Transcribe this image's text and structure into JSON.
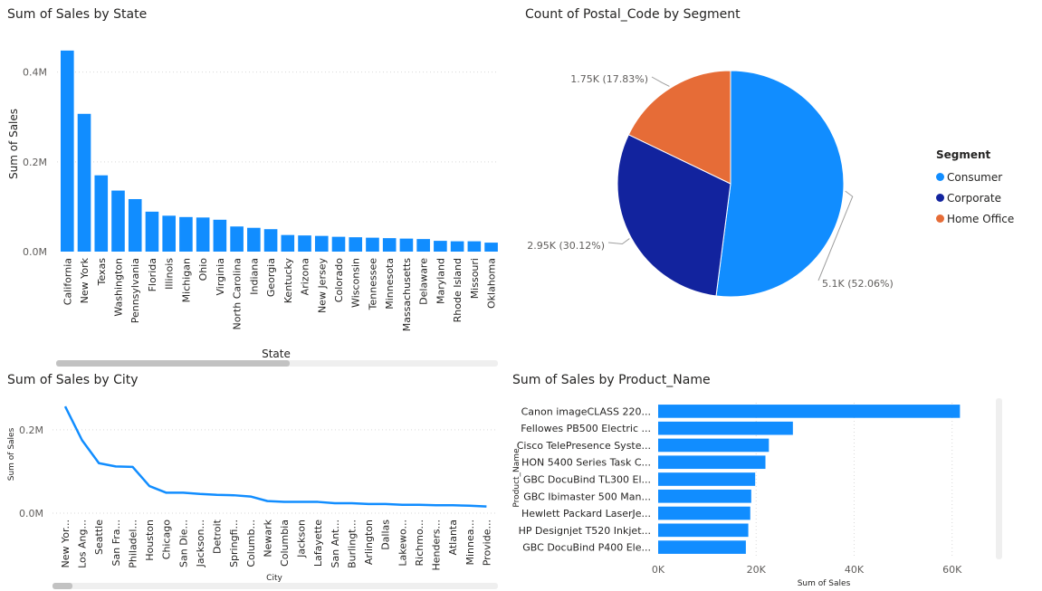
{
  "chart_data": [
    {
      "id": "state",
      "type": "bar",
      "title": "Sum of Sales by State",
      "xlabel": "State",
      "ylabel": "Sum of Sales",
      "yticks": [
        "0.0M",
        "0.2M",
        "0.4M"
      ],
      "ytick_values": [
        0,
        200000,
        400000
      ],
      "ylim": [
        0,
        480000
      ],
      "grid": true,
      "categories": [
        "California",
        "New York",
        "Texas",
        "Washington",
        "Pennsylvania",
        "Florida",
        "Illinois",
        "Michigan",
        "Ohio",
        "Virginia",
        "North Carolina",
        "Indiana",
        "Georgia",
        "Kentucky",
        "Arizona",
        "New Jersey",
        "Colorado",
        "Wisconsin",
        "Tennessee",
        "Minnesota",
        "Massachusetts",
        "Delaware",
        "Maryland",
        "Rhode Island",
        "Missouri",
        "Oklahoma"
      ],
      "values": [
        448000,
        307000,
        170000,
        136000,
        117000,
        89000,
        80000,
        77000,
        76000,
        71000,
        56000,
        53000,
        50000,
        37000,
        36000,
        35000,
        33000,
        32000,
        31000,
        30000,
        29000,
        28000,
        24000,
        23000,
        23000,
        20000
      ],
      "color": "#118dff"
    },
    {
      "id": "segment",
      "type": "pie",
      "title": "Count of Postal_Code by Segment",
      "legend_title": "Segment",
      "legend_position": "right",
      "slices": [
        {
          "label": "Consumer",
          "value": 5100,
          "display": "5.1K (52.06%)",
          "color": "#118dff"
        },
        {
          "label": "Corporate",
          "value": 2950,
          "display": "2.95K (30.12%)",
          "color": "#12239e"
        },
        {
          "label": "Home Office",
          "value": 1750,
          "display": "1.75K (17.83%)",
          "color": "#e66c37"
        }
      ]
    },
    {
      "id": "city",
      "type": "line",
      "title": "Sum of Sales by City",
      "xlabel": "City",
      "ylabel": "Sum of Sales",
      "yticks": [
        "0.0M",
        "0.2M"
      ],
      "ytick_values": [
        0,
        200000
      ],
      "ylim": [
        0,
        280000
      ],
      "grid": true,
      "categories": [
        "New Yor...",
        "Los Ang...",
        "Seattle",
        "San Fra...",
        "Philadel...",
        "Houston",
        "Chicago",
        "San Die...",
        "Jackson...",
        "Detroit",
        "Springfi...",
        "Columb...",
        "Newark",
        "Columbia",
        "Jackson",
        "Lafayette",
        "San Ant...",
        "Burlingt...",
        "Arlington",
        "Dallas",
        "Lakewo...",
        "Richmo...",
        "Henders...",
        "Atlanta",
        "Minnea...",
        "Provide..."
      ],
      "values": [
        256000,
        175000,
        120000,
        112000,
        111000,
        65000,
        49000,
        49000,
        46000,
        44000,
        43000,
        40000,
        29000,
        27000,
        27000,
        27000,
        24000,
        24000,
        22000,
        22000,
        20000,
        20000,
        19000,
        19000,
        18000,
        16000
      ],
      "color": "#118dff"
    },
    {
      "id": "product",
      "type": "bar",
      "orientation": "horizontal",
      "title": "Sum of Sales by Product_Name",
      "xlabel": "Sum of Sales",
      "ylabel": "Product_Name",
      "xticks": [
        "0K",
        "20K",
        "40K",
        "60K"
      ],
      "xtick_values": [
        0,
        20000,
        40000,
        60000
      ],
      "xlim": [
        0,
        68000
      ],
      "grid": true,
      "categories": [
        "Canon imageCLASS 220...",
        "Fellowes PB500 Electric ...",
        "Cisco TelePresence Syste...",
        "HON 5400 Series Task C...",
        "GBC DocuBind TL300 El...",
        "GBC Ibimaster 500 Man...",
        "Hewlett Packard LaserJe...",
        "HP Designjet T520 Inkjet...",
        "GBC DocuBind P400 Ele..."
      ],
      "values": [
        61600,
        27500,
        22600,
        21900,
        19800,
        19000,
        18800,
        18400,
        17900
      ],
      "color": "#118dff"
    }
  ]
}
